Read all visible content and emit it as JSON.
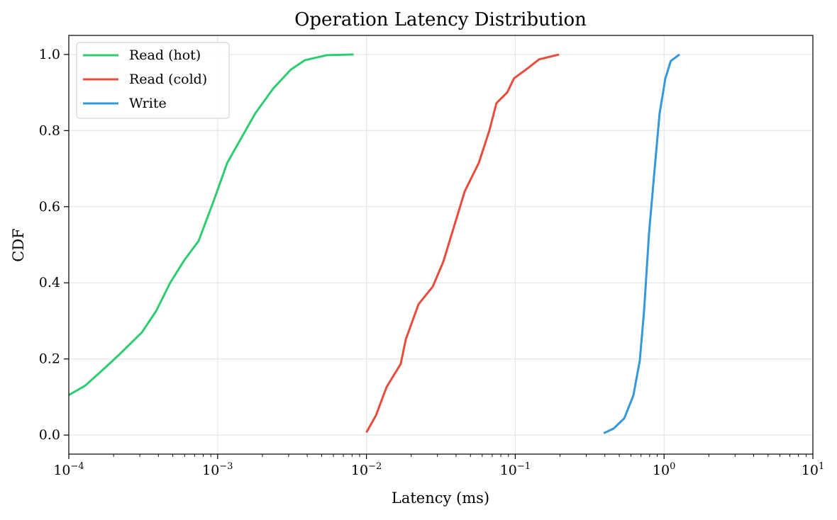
{
  "chart_data": {
    "type": "line",
    "title": "Operation Latency Distribution",
    "xlabel": "Latency (ms)",
    "ylabel": "CDF",
    "xscale": "log",
    "xlim": [
      0.0001,
      10
    ],
    "ylim": [
      -0.05,
      1.05
    ],
    "xticks": [
      0.0001,
      0.001,
      0.01,
      0.1,
      1,
      10
    ],
    "xtick_labels": [
      {
        "base": "10",
        "exp": "−4"
      },
      {
        "base": "10",
        "exp": "−3"
      },
      {
        "base": "10",
        "exp": "−2"
      },
      {
        "base": "10",
        "exp": "−1"
      },
      {
        "base": "10",
        "exp": "0"
      },
      {
        "base": "10",
        "exp": "1"
      }
    ],
    "yticks": [
      0.0,
      0.2,
      0.4,
      0.6,
      0.8,
      1.0
    ],
    "ytick_labels": [
      "0.0",
      "0.2",
      "0.4",
      "0.6",
      "0.8",
      "1.0"
    ],
    "grid": true,
    "legend_position": "top-left",
    "series": [
      {
        "name": "Read (hot)",
        "color": "#2ecc71",
        "x": [
          0.0001,
          0.000129,
          0.000179,
          0.000223,
          0.00031,
          0.000386,
          0.00048,
          0.000598,
          0.000745,
          0.00093,
          0.00116,
          0.00144,
          0.00179,
          0.00236,
          0.0031,
          0.00386,
          0.0054,
          0.0082
        ],
        "y": [
          0.105,
          0.13,
          0.18,
          0.215,
          0.27,
          0.326,
          0.4,
          0.46,
          0.51,
          0.61,
          0.715,
          0.78,
          0.845,
          0.91,
          0.96,
          0.985,
          0.998,
          1.0
        ]
      },
      {
        "name": "Read (cold)",
        "color": "#e74c3c",
        "x": [
          0.01,
          0.0116,
          0.01365,
          0.017,
          0.0184,
          0.0224,
          0.0279,
          0.0329,
          0.0388,
          0.0457,
          0.0569,
          0.067,
          0.0748,
          0.0882,
          0.098,
          0.1225,
          0.1445,
          0.197
        ],
        "y": [
          0.007,
          0.052,
          0.126,
          0.187,
          0.252,
          0.344,
          0.39,
          0.456,
          0.548,
          0.64,
          0.715,
          0.8,
          0.872,
          0.9,
          0.937,
          0.965,
          0.987,
          1.0
        ]
      },
      {
        "name": "Write",
        "color": "#3498db",
        "x": [
          0.393,
          0.458,
          0.54,
          0.622,
          0.687,
          0.734,
          0.792,
          0.855,
          0.933,
          1.02,
          1.11,
          1.27
        ],
        "y": [
          0.005,
          0.017,
          0.044,
          0.104,
          0.196,
          0.326,
          0.53,
          0.678,
          0.845,
          0.937,
          0.983,
          1.0
        ]
      }
    ]
  }
}
